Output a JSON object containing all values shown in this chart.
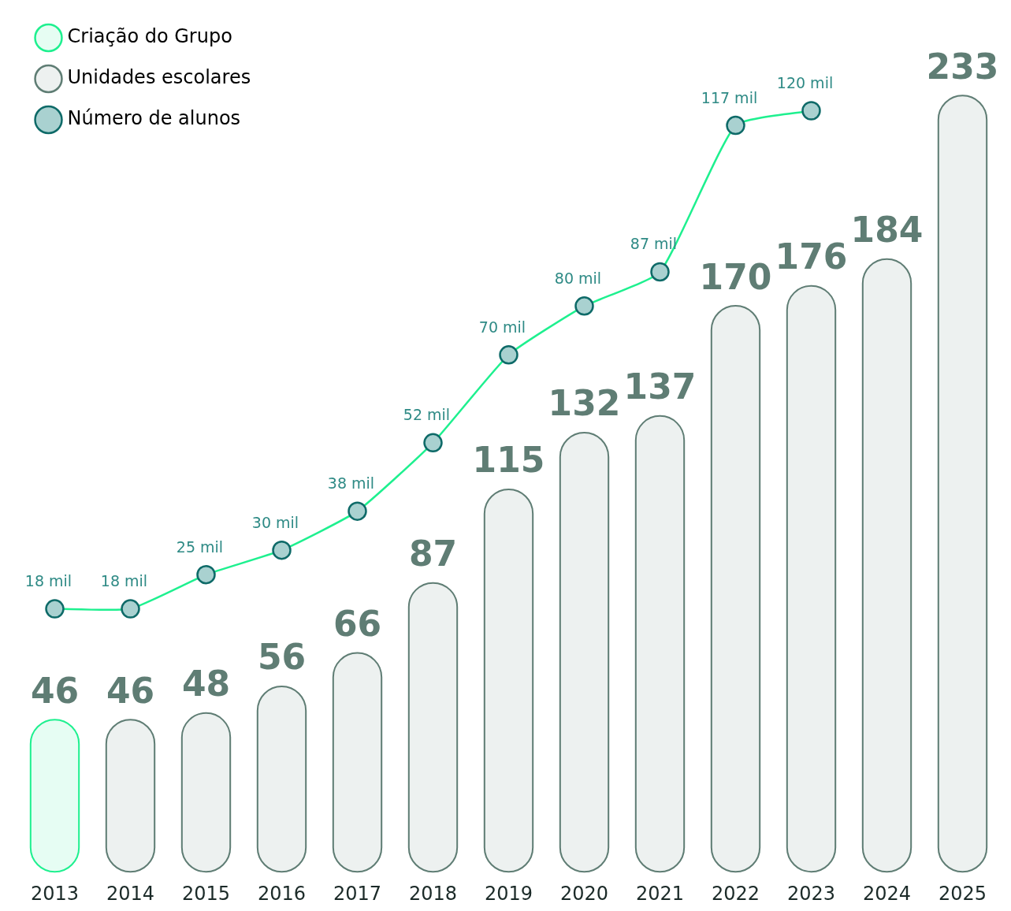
{
  "chart_data": {
    "type": "bar",
    "categories": [
      "2013",
      "2014",
      "2015",
      "2016",
      "2017",
      "2018",
      "2019",
      "2020",
      "2021",
      "2022",
      "2023",
      "2024",
      "2025"
    ],
    "stacked": true,
    "data_labels": true,
    "legend": "top left",
    "tick_labels": "x",
    "grid": false,
    "series": [
      {
        "name": "Criação do Grupo",
        "color": "#e6fdf3",
        "values": [
          46,
          null,
          null,
          null,
          null,
          null,
          null,
          null,
          null,
          null,
          null,
          null,
          null
        ]
      },
      {
        "name": "Unidades escolares",
        "color": "#edf1f0",
        "values": [
          null,
          46,
          48,
          56,
          66,
          87,
          115,
          132,
          137,
          170,
          176,
          184,
          233
        ]
      },
      {
        "name": "Número de alunos",
        "type": "line",
        "axis": "y2",
        "color": "#1ef08f",
        "marker": "circle",
        "values": [
          18,
          18,
          25,
          30,
          38,
          52,
          70,
          80,
          87,
          117,
          120,
          null,
          null
        ],
        "value_labels": [
          "18 mil",
          "18 mil",
          "25 mil",
          "30 mil",
          "38 mil",
          "52 mil",
          "70 mil",
          "80 mil",
          "87 mil",
          "117 mil",
          "120 mil",
          null,
          null
        ]
      }
    ]
  }
}
